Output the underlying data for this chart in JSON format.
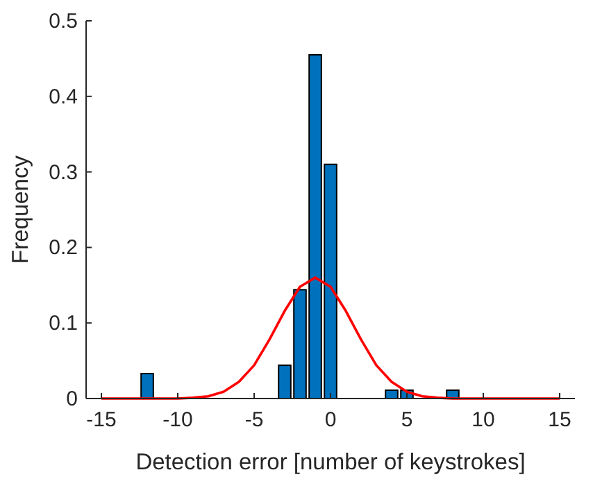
{
  "chart_data": {
    "type": "bar",
    "xlabel": "Detection error [number of keystrokes]",
    "ylabel": "Frequency",
    "xlim": [
      -16,
      16
    ],
    "xticks": [
      -15,
      -10,
      -5,
      0,
      5,
      10,
      15
    ],
    "ylim": [
      0,
      0.5
    ],
    "yticks": [
      0,
      0.1,
      0.2,
      0.3,
      0.4,
      0.5
    ],
    "grid": false,
    "series": [
      {
        "color": "#0072bd",
        "x": [
          -12,
          -3,
          -2,
          -1,
          0,
          4,
          5,
          8
        ],
        "values": [
          0.033,
          0.044,
          0.144,
          0.455,
          0.31,
          0.011,
          0.011,
          0.011
        ]
      },
      {
        "type": "line",
        "color": "#ff0000",
        "x": [
          -15,
          -14,
          -13,
          -12,
          -11,
          -10,
          -9,
          -8,
          -7,
          -6,
          -5,
          -4,
          -3,
          -2,
          -1,
          0,
          1,
          2,
          3,
          4,
          5,
          6,
          7,
          8,
          9,
          10,
          11,
          12,
          13,
          14,
          15
        ],
        "values": [
          0,
          0,
          0,
          0,
          0,
          0,
          0.001,
          0.003,
          0.009,
          0.022,
          0.044,
          0.078,
          0.116,
          0.148,
          0.16,
          0.148,
          0.116,
          0.078,
          0.044,
          0.022,
          0.009,
          0.003,
          0.001,
          0,
          0,
          0,
          0,
          0,
          0,
          0,
          0
        ]
      }
    ]
  }
}
